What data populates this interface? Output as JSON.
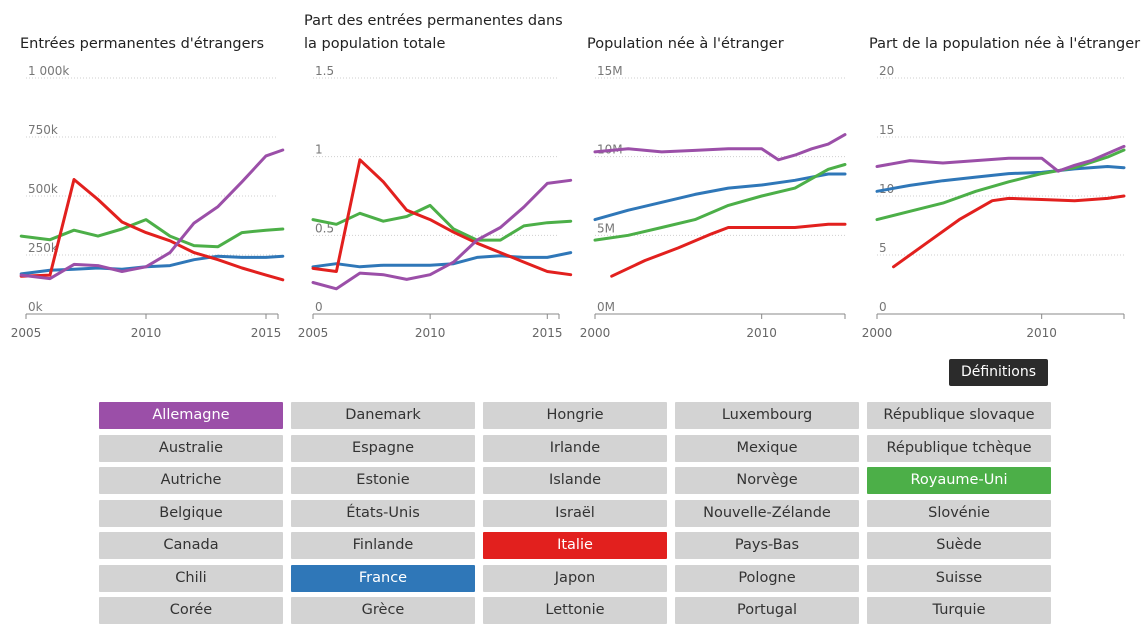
{
  "definitions_label": "Définitions",
  "colors": {
    "Allemagne": "#9b4fa8",
    "France": "#2f77b8",
    "Italie": "#e2201e",
    "Royaume-Uni": "#4caf48",
    "inactive": "#d3d3d3"
  },
  "charts": [
    {
      "title": "Entrées permanentes d'étrangers"
    },
    {
      "title": "Part des entrées permanentes dans la population totale"
    },
    {
      "title": "Population née à l'étranger"
    },
    {
      "title": "Part de la population née à l'étranger"
    }
  ],
  "buttons": {
    "columns": [
      [
        "Allemagne",
        "Australie",
        "Autriche",
        "Belgique",
        "Canada",
        "Chili",
        "Corée"
      ],
      [
        "Danemark",
        "Espagne",
        "Estonie",
        "États-Unis",
        "Finlande",
        "France",
        "Grèce"
      ],
      [
        "Hongrie",
        "Irlande",
        "Islande",
        "Israël",
        "Italie",
        "Japon",
        "Lettonie"
      ],
      [
        "Luxembourg",
        "Mexique",
        "Norvège",
        "Nouvelle-Zélande",
        "Pays-Bas",
        "Pologne",
        "Portugal"
      ],
      [
        "République slovaque",
        "République tchèque",
        "Royaume-Uni",
        "Slovénie",
        "Suède",
        "Suisse",
        "Turquie"
      ]
    ],
    "active": [
      "Allemagne",
      "France",
      "Italie",
      "Royaume-Uni"
    ]
  },
  "chart_data": [
    {
      "type": "line",
      "title": "Entrées permanentes d'étrangers",
      "xlim": [
        2005,
        2015.5
      ],
      "xticks": [
        2005,
        2010,
        2015
      ],
      "ylim": [
        0,
        1000000
      ],
      "yticks": [
        0,
        250000,
        500000,
        750000,
        1000000
      ],
      "ytick_labels": [
        "0k",
        "250k",
        "500k",
        "750k",
        "1 000k"
      ],
      "series": [
        {
          "name": "France",
          "x": [
            2004.8,
            2006,
            2007,
            2008,
            2009,
            2010,
            2011,
            2012,
            2013,
            2014,
            2015,
            2015.7
          ],
          "y": [
            170000,
            185000,
            190000,
            195000,
            190000,
            200000,
            205000,
            230000,
            245000,
            240000,
            240000,
            245000
          ]
        },
        {
          "name": "Royaume-Uni",
          "x": [
            2004.8,
            2006,
            2007,
            2008,
            2009,
            2010,
            2011,
            2012,
            2013,
            2014,
            2015,
            2015.7
          ],
          "y": [
            330000,
            315000,
            355000,
            330000,
            360000,
            400000,
            330000,
            290000,
            285000,
            345000,
            355000,
            360000
          ]
        },
        {
          "name": "Italie",
          "x": [
            2004.8,
            2006,
            2007,
            2008,
            2009,
            2010,
            2011,
            2012,
            2013,
            2014,
            2015,
            2015.7
          ],
          "y": [
            160000,
            165000,
            570000,
            485000,
            390000,
            345000,
            310000,
            260000,
            230000,
            195000,
            165000,
            145000
          ]
        },
        {
          "name": "Allemagne",
          "x": [
            2004.8,
            2006,
            2007,
            2008,
            2009,
            2010,
            2011,
            2012,
            2013,
            2014,
            2015,
            2015.7
          ],
          "y": [
            165000,
            150000,
            210000,
            205000,
            180000,
            200000,
            260000,
            385000,
            455000,
            560000,
            670000,
            695000
          ]
        }
      ]
    },
    {
      "type": "line",
      "title": "Part des entrées permanentes dans la population totale",
      "xlim": [
        2005,
        2015.5
      ],
      "xticks": [
        2005,
        2010,
        2015
      ],
      "ylim": [
        0,
        1.5
      ],
      "yticks": [
        0,
        0.5,
        1,
        1.5
      ],
      "ytick_labels": [
        "0",
        "0.5",
        "1",
        "1.5"
      ],
      "series": [
        {
          "name": "France",
          "x": [
            2005,
            2006,
            2007,
            2008,
            2009,
            2010,
            2011,
            2012,
            2013,
            2014,
            2015,
            2016
          ],
          "y": [
            0.3,
            0.32,
            0.3,
            0.31,
            0.31,
            0.31,
            0.32,
            0.36,
            0.37,
            0.36,
            0.36,
            0.39
          ]
        },
        {
          "name": "Royaume-Uni",
          "x": [
            2005,
            2006,
            2007,
            2008,
            2009,
            2010,
            2011,
            2012,
            2013,
            2014,
            2015,
            2016
          ],
          "y": [
            0.6,
            0.57,
            0.64,
            0.59,
            0.62,
            0.69,
            0.54,
            0.47,
            0.47,
            0.56,
            0.58,
            0.59
          ]
        },
        {
          "name": "Italie",
          "x": [
            2005,
            2006,
            2007,
            2008,
            2009,
            2010,
            2011,
            2012,
            2013,
            2014,
            2015,
            2016
          ],
          "y": [
            0.29,
            0.27,
            0.98,
            0.84,
            0.66,
            0.6,
            0.52,
            0.45,
            0.39,
            0.33,
            0.27,
            0.25
          ]
        },
        {
          "name": "Allemagne",
          "x": [
            2005,
            2006,
            2007,
            2008,
            2009,
            2010,
            2011,
            2012,
            2013,
            2014,
            2015,
            2016
          ],
          "y": [
            0.2,
            0.16,
            0.26,
            0.25,
            0.22,
            0.25,
            0.33,
            0.47,
            0.55,
            0.68,
            0.83,
            0.85
          ]
        }
      ]
    },
    {
      "type": "line",
      "title": "Population née à l'étranger",
      "xlim": [
        2000,
        2015
      ],
      "xticks": [
        2000,
        2010
      ],
      "ylim": [
        0,
        15000000
      ],
      "yticks": [
        0,
        5000000,
        10000000,
        15000000
      ],
      "ytick_labels": [
        "0M",
        "5M",
        "10M",
        "15M"
      ],
      "series": [
        {
          "name": "France",
          "x": [
            2000,
            2002,
            2004,
            2006,
            2008,
            2010,
            2012,
            2014,
            2015
          ],
          "y": [
            6000000,
            6600000,
            7100000,
            7600000,
            8000000,
            8200000,
            8500000,
            8900000,
            8900000
          ]
        },
        {
          "name": "Royaume-Uni",
          "x": [
            2000,
            2002,
            2004,
            2006,
            2008,
            2010,
            2012,
            2014,
            2015
          ],
          "y": [
            4700000,
            5000000,
            5500000,
            6000000,
            6900000,
            7500000,
            8000000,
            9200000,
            9500000
          ]
        },
        {
          "name": "Italie",
          "x": [
            2001,
            2003,
            2005,
            2007,
            2008,
            2010,
            2012,
            2014,
            2015
          ],
          "y": [
            2400000,
            3400000,
            4200000,
            5100000,
            5500000,
            5500000,
            5500000,
            5700000,
            5700000
          ]
        },
        {
          "name": "Allemagne",
          "x": [
            2000,
            2002,
            2004,
            2006,
            2008,
            2010,
            2011,
            2012,
            2013,
            2014,
            2015
          ],
          "y": [
            10300000,
            10500000,
            10300000,
            10400000,
            10500000,
            10500000,
            9800000,
            10100000,
            10500000,
            10800000,
            11400000
          ]
        }
      ]
    },
    {
      "type": "line",
      "title": "Part de la population née à l'étranger",
      "xlim": [
        2000,
        2015
      ],
      "xticks": [
        2000,
        2010
      ],
      "ylim": [
        0,
        20
      ],
      "yticks": [
        0,
        5,
        10,
        15,
        20
      ],
      "ytick_labels": [
        "0",
        "5",
        "10",
        "15",
        "20"
      ],
      "series": [
        {
          "name": "France",
          "x": [
            2000,
            2002,
            2004,
            2006,
            2008,
            2010,
            2012,
            2014,
            2015
          ],
          "y": [
            10.4,
            10.9,
            11.3,
            11.6,
            11.9,
            12.0,
            12.3,
            12.5,
            12.4
          ]
        },
        {
          "name": "Royaume-Uni",
          "x": [
            2000,
            2002,
            2004,
            2006,
            2008,
            2010,
            2012,
            2014,
            2015
          ],
          "y": [
            8.0,
            8.7,
            9.4,
            10.4,
            11.2,
            11.9,
            12.4,
            13.3,
            13.9
          ]
        },
        {
          "name": "Allemagne",
          "x": [
            2000,
            2002,
            2004,
            2006,
            2008,
            2010,
            2011,
            2012,
            2013,
            2014,
            2015
          ],
          "y": [
            12.5,
            13.0,
            12.8,
            13.0,
            13.2,
            13.2,
            12.1,
            12.6,
            13.0,
            13.6,
            14.2
          ]
        },
        {
          "name": "Italie",
          "x": [
            2001,
            2003,
            2005,
            2007,
            2008,
            2010,
            2012,
            2014,
            2015
          ],
          "y": [
            4.0,
            6.0,
            8.0,
            9.6,
            9.8,
            9.7,
            9.6,
            9.8,
            10.0
          ]
        }
      ]
    }
  ]
}
